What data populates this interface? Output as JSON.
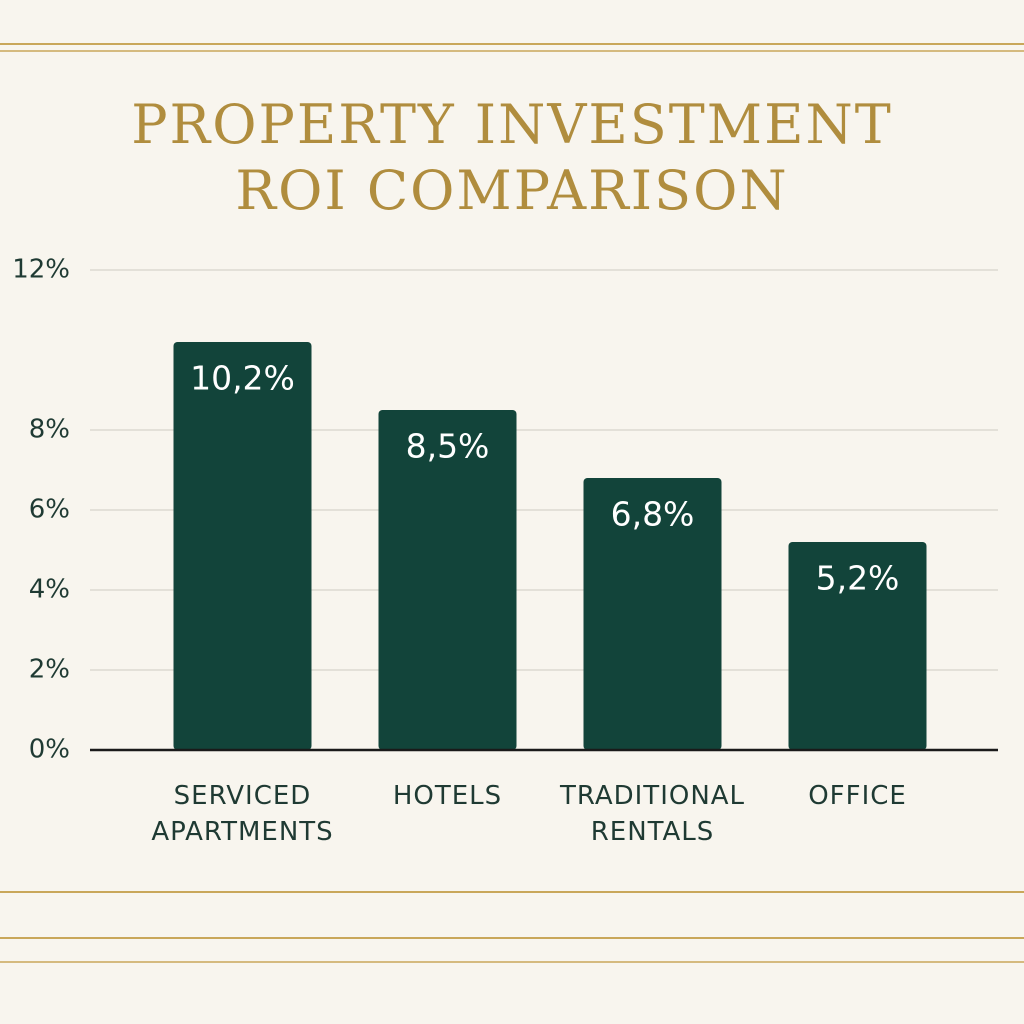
{
  "chart_data": {
    "type": "bar",
    "title": "PROPERTY INVESTMENT ROI COMPARISON",
    "categories": [
      "SERVICED APARTMENTS",
      "HOTELS",
      "TRADITIONAL RENTALS",
      "OFFICE"
    ],
    "values": [
      10.2,
      8.5,
      6.8,
      5.2
    ],
    "value_labels": [
      "10,2%",
      "8,5%",
      "6,8%",
      "5,2%"
    ],
    "color": "#12443a",
    "ylim": [
      0,
      12
    ],
    "yticks": [
      {
        "value": 0,
        "label": "0%"
      },
      {
        "value": 2,
        "label": "2%"
      },
      {
        "value": 4,
        "label": "4%"
      },
      {
        "value": 6,
        "label": "6%"
      },
      {
        "value": 8,
        "label": "8%"
      },
      {
        "value": 12,
        "label": "12%"
      }
    ],
    "grid": true
  }
}
